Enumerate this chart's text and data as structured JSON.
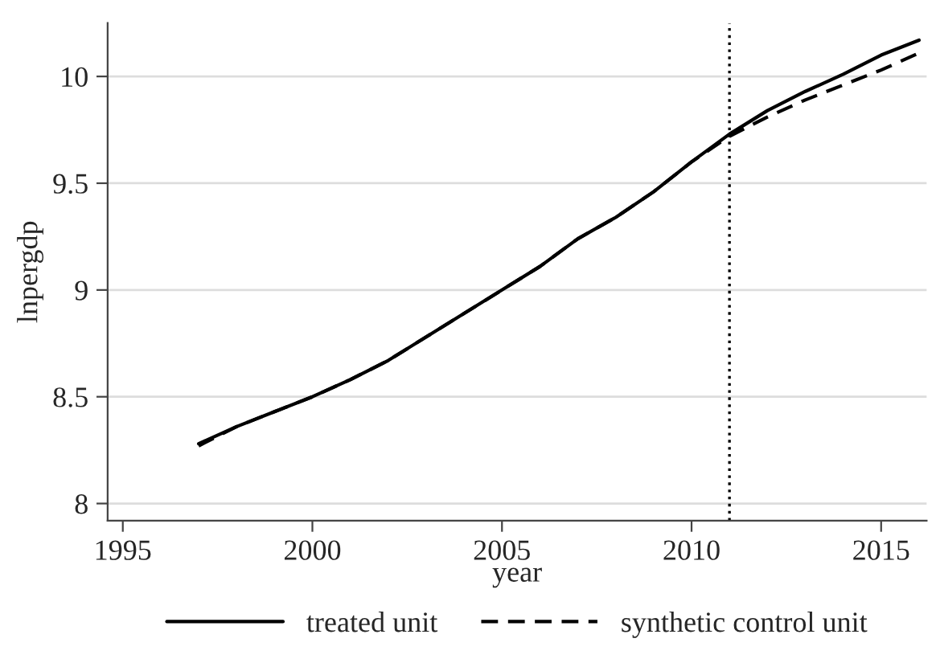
{
  "chart_data": {
    "type": "line",
    "xlabel": "year",
    "ylabel": "lnpergdp",
    "x": [
      1997,
      1998,
      1999,
      2000,
      2001,
      2002,
      2003,
      2004,
      2005,
      2006,
      2007,
      2008,
      2009,
      2010,
      2011,
      2012,
      2013,
      2014,
      2015,
      2016
    ],
    "series": [
      {
        "name": "treated unit",
        "color": "#000000",
        "line_style": "solid",
        "values": [
          8.28,
          8.36,
          8.43,
          8.5,
          8.58,
          8.67,
          8.78,
          8.89,
          9.0,
          9.11,
          9.24,
          9.34,
          9.46,
          9.6,
          9.73,
          9.84,
          9.93,
          10.01,
          10.1,
          10.17
        ]
      },
      {
        "name": "synthetic control unit",
        "color": "#000000",
        "line_style": "dashed",
        "values": [
          8.27,
          8.36,
          8.43,
          8.5,
          8.58,
          8.67,
          8.78,
          8.89,
          9.0,
          9.11,
          9.24,
          9.34,
          9.46,
          9.6,
          9.72,
          9.81,
          9.89,
          9.96,
          10.03,
          10.11
        ]
      }
    ],
    "xlim": [
      1994.6,
      2016.2
    ],
    "ylim": [
      7.92,
      10.25
    ],
    "xticks": [
      1995,
      2000,
      2005,
      2010,
      2015
    ],
    "yticks": [
      8,
      8.5,
      9,
      9.5,
      10
    ],
    "grid": "y",
    "legend": "bottom",
    "ref_lines": [
      {
        "axis": "x",
        "value": 2011,
        "color": "#000000",
        "line_style": "dotted"
      }
    ]
  }
}
